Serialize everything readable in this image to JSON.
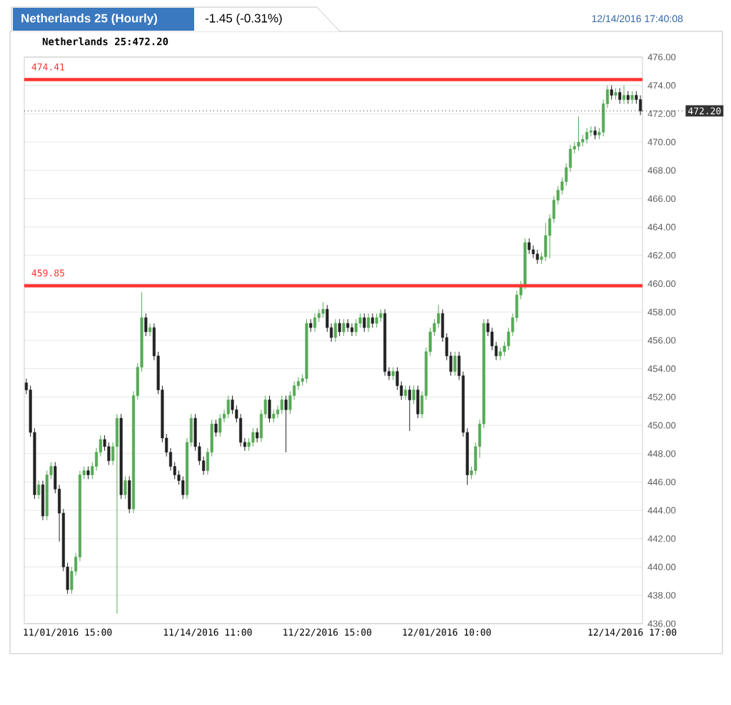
{
  "chart_data": {
    "type": "candlestick",
    "title": "Netherlands 25 (Hourly)",
    "subtitle": "-1.45 (-0.31%)",
    "annotations": [
      "Netherlands 25:472.20",
      "12/14/2016 17:40:08"
    ],
    "categories": [
      null,
      null,
      null,
      null,
      null,
      null,
      null,
      null,
      null,
      null,
      "11/01/2016 15:00",
      null,
      null,
      null,
      null,
      null,
      null,
      null,
      null,
      null,
      null,
      null,
      null,
      null,
      null,
      null,
      null,
      null,
      null,
      null,
      null,
      null,
      null,
      null,
      null,
      null,
      null,
      null,
      null,
      null,
      null,
      null,
      null,
      null,
      "11/14/2016 11:00",
      null,
      null,
      null,
      null,
      null,
      null,
      null,
      null,
      null,
      null,
      null,
      null,
      null,
      null,
      null,
      null,
      null,
      null,
      null,
      null,
      null,
      null,
      null,
      null,
      null,
      null,
      null,
      null,
      "11/22/2016 15:00",
      null,
      null,
      null,
      null,
      null,
      null,
      null,
      null,
      null,
      null,
      null,
      null,
      null,
      null,
      null,
      null,
      null,
      null,
      null,
      null,
      null,
      null,
      null,
      null,
      null,
      null,
      null,
      null,
      "12/01/2016 10:00",
      null,
      null,
      null,
      null,
      null,
      null,
      null,
      null,
      null,
      null,
      null,
      null,
      null,
      null,
      null,
      null,
      null,
      null,
      null,
      null,
      null,
      null,
      null,
      null,
      null,
      null,
      null,
      null,
      null,
      null,
      null,
      null,
      null,
      null,
      null,
      null,
      null,
      null,
      null,
      null,
      null,
      null,
      null,
      null,
      "12/14/2016 17:00",
      null,
      null
    ],
    "ohlc": [
      [
        453.0,
        453.3,
        452.2,
        452.5
      ],
      [
        452.5,
        452.8,
        449.2,
        449.5
      ],
      [
        449.5,
        449.8,
        444.8,
        445.1
      ],
      [
        445.1,
        446.1,
        444.8,
        445.8
      ],
      [
        445.8,
        446.1,
        443.3,
        443.6
      ],
      [
        443.6,
        446.8,
        443.3,
        446.5
      ],
      [
        446.5,
        447.4,
        446.2,
        447.1
      ],
      [
        447.1,
        447.4,
        445.2,
        445.5
      ],
      [
        445.5,
        445.8,
        441.8,
        443.8
      ],
      [
        443.8,
        444.1,
        439.7,
        440.0
      ],
      [
        440.0,
        440.3,
        438.1,
        438.4
      ],
      [
        438.4,
        440.0,
        438.1,
        439.7
      ],
      [
        439.7,
        441.0,
        439.4,
        440.7
      ],
      [
        440.7,
        446.8,
        440.4,
        446.5
      ],
      [
        446.5,
        447.1,
        446.2,
        446.8
      ],
      [
        446.8,
        447.1,
        446.2,
        446.5
      ],
      [
        446.5,
        447.4,
        446.2,
        447.1
      ],
      [
        447.1,
        448.4,
        446.8,
        448.1
      ],
      [
        448.1,
        449.3,
        447.8,
        449.0
      ],
      [
        449.0,
        449.3,
        448.2,
        448.5
      ],
      [
        448.5,
        448.8,
        447.2,
        447.5
      ],
      [
        447.5,
        448.8,
        447.2,
        448.5
      ],
      [
        448.5,
        450.8,
        436.7,
        450.5
      ],
      [
        450.5,
        450.8,
        444.8,
        445.1
      ],
      [
        445.1,
        446.4,
        444.8,
        446.1
      ],
      [
        446.1,
        446.4,
        443.8,
        444.1
      ],
      [
        444.1,
        452.4,
        443.8,
        452.1
      ],
      [
        452.1,
        454.4,
        451.8,
        454.1
      ],
      [
        454.1,
        459.4,
        453.8,
        457.6
      ],
      [
        457.6,
        457.9,
        456.3,
        456.6
      ],
      [
        456.6,
        457.2,
        456.3,
        456.9
      ],
      [
        456.9,
        457.2,
        454.6,
        454.9
      ],
      [
        454.9,
        455.2,
        452.2,
        452.5
      ],
      [
        452.5,
        452.8,
        448.8,
        449.1
      ],
      [
        449.1,
        449.4,
        447.8,
        448.1
      ],
      [
        448.1,
        448.4,
        446.8,
        447.1
      ],
      [
        447.1,
        447.4,
        446.2,
        446.5
      ],
      [
        446.5,
        446.8,
        445.8,
        446.1
      ],
      [
        446.1,
        446.4,
        444.8,
        445.1
      ],
      [
        445.1,
        449.1,
        444.8,
        448.8
      ],
      [
        448.8,
        450.8,
        448.5,
        450.5
      ],
      [
        450.5,
        450.8,
        448.2,
        448.5
      ],
      [
        448.5,
        448.8,
        447.2,
        447.5
      ],
      [
        447.5,
        447.8,
        446.5,
        446.8
      ],
      [
        446.8,
        448.4,
        446.5,
        448.1
      ],
      [
        448.1,
        450.4,
        447.8,
        450.1
      ],
      [
        450.1,
        450.4,
        449.2,
        449.5
      ],
      [
        449.5,
        450.8,
        449.2,
        450.5
      ],
      [
        450.5,
        451.1,
        450.2,
        450.8
      ],
      [
        450.8,
        452.1,
        450.5,
        451.8
      ],
      [
        451.8,
        452.1,
        450.8,
        451.1
      ],
      [
        451.1,
        451.4,
        450.2,
        450.5
      ],
      [
        450.5,
        450.8,
        448.5,
        448.8
      ],
      [
        448.8,
        449.1,
        448.2,
        448.5
      ],
      [
        448.5,
        449.1,
        448.2,
        448.8
      ],
      [
        448.8,
        449.8,
        448.5,
        449.5
      ],
      [
        449.5,
        449.8,
        448.8,
        449.1
      ],
      [
        449.1,
        451.1,
        448.8,
        450.8
      ],
      [
        450.8,
        452.1,
        450.5,
        451.8
      ],
      [
        451.8,
        452.1,
        450.2,
        450.5
      ],
      [
        450.5,
        451.1,
        450.2,
        450.8
      ],
      [
        450.8,
        451.4,
        450.5,
        451.1
      ],
      [
        451.1,
        452.1,
        450.8,
        451.8
      ],
      [
        451.8,
        452.1,
        448.1,
        451.1
      ],
      [
        451.1,
        452.4,
        450.8,
        452.1
      ],
      [
        452.1,
        453.1,
        451.8,
        452.8
      ],
      [
        452.8,
        453.4,
        452.5,
        453.1
      ],
      [
        453.1,
        453.6,
        452.8,
        453.3
      ],
      [
        453.3,
        457.5,
        453.0,
        457.2
      ],
      [
        457.2,
        457.5,
        456.6,
        456.9
      ],
      [
        456.9,
        457.9,
        456.6,
        457.6
      ],
      [
        457.6,
        458.2,
        457.3,
        457.9
      ],
      [
        457.9,
        458.7,
        457.6,
        458.2
      ],
      [
        458.2,
        458.5,
        456.6,
        456.9
      ],
      [
        456.9,
        457.2,
        455.9,
        456.2
      ],
      [
        456.2,
        457.5,
        455.9,
        457.2
      ],
      [
        457.2,
        457.5,
        456.3,
        456.6
      ],
      [
        456.6,
        457.5,
        456.3,
        457.2
      ],
      [
        457.2,
        457.5,
        456.6,
        456.9
      ],
      [
        456.9,
        457.2,
        456.3,
        456.6
      ],
      [
        456.6,
        457.5,
        456.3,
        457.2
      ],
      [
        457.2,
        457.9,
        456.9,
        457.6
      ],
      [
        457.6,
        457.9,
        456.6,
        456.9
      ],
      [
        456.9,
        457.9,
        456.6,
        457.6
      ],
      [
        457.6,
        457.9,
        456.9,
        457.2
      ],
      [
        457.2,
        457.9,
        456.9,
        457.6
      ],
      [
        457.6,
        458.2,
        457.3,
        457.9
      ],
      [
        457.9,
        458.2,
        453.5,
        453.8
      ],
      [
        453.8,
        454.1,
        453.2,
        453.5
      ],
      [
        453.5,
        454.1,
        453.2,
        453.8
      ],
      [
        453.8,
        454.1,
        452.5,
        452.8
      ],
      [
        452.8,
        453.1,
        451.8,
        452.1
      ],
      [
        452.1,
        452.8,
        451.8,
        452.5
      ],
      [
        452.5,
        452.8,
        449.6,
        451.8
      ],
      [
        451.8,
        452.8,
        451.5,
        452.5
      ],
      [
        452.5,
        452.8,
        450.5,
        450.8
      ],
      [
        450.8,
        452.4,
        450.5,
        452.1
      ],
      [
        452.1,
        455.5,
        451.8,
        455.2
      ],
      [
        455.2,
        456.9,
        454.9,
        456.6
      ],
      [
        456.6,
        457.5,
        456.3,
        457.2
      ],
      [
        457.2,
        458.5,
        456.9,
        457.9
      ],
      [
        457.9,
        458.2,
        455.9,
        456.2
      ],
      [
        456.2,
        456.5,
        454.6,
        454.9
      ],
      [
        454.9,
        455.2,
        453.5,
        453.8
      ],
      [
        453.8,
        455.2,
        453.5,
        454.9
      ],
      [
        454.9,
        455.2,
        453.2,
        453.5
      ],
      [
        453.5,
        453.8,
        449.2,
        449.5
      ],
      [
        449.5,
        449.8,
        445.8,
        446.5
      ],
      [
        446.5,
        447.1,
        446.2,
        446.8
      ],
      [
        446.8,
        448.8,
        446.5,
        448.5
      ],
      [
        448.5,
        450.4,
        447.7,
        450.1
      ],
      [
        450.1,
        457.5,
        449.8,
        457.2
      ],
      [
        457.2,
        457.5,
        456.3,
        456.6
      ],
      [
        456.6,
        456.9,
        455.3,
        455.6
      ],
      [
        455.6,
        455.9,
        454.6,
        454.9
      ],
      [
        454.9,
        455.5,
        454.6,
        455.2
      ],
      [
        455.2,
        455.9,
        454.9,
        455.6
      ],
      [
        455.6,
        456.9,
        455.3,
        456.6
      ],
      [
        456.6,
        457.9,
        456.3,
        457.6
      ],
      [
        457.6,
        459.5,
        457.3,
        459.2
      ],
      [
        459.2,
        460.2,
        458.9,
        459.9
      ],
      [
        459.9,
        463.2,
        459.6,
        462.9
      ],
      [
        462.9,
        463.2,
        462.1,
        462.4
      ],
      [
        462.4,
        462.7,
        461.8,
        462.1
      ],
      [
        462.1,
        462.4,
        461.4,
        461.7
      ],
      [
        461.7,
        462.2,
        461.4,
        461.9
      ],
      [
        461.9,
        464.3,
        461.6,
        463.4
      ],
      [
        463.4,
        464.9,
        461.8,
        464.6
      ],
      [
        464.6,
        466.2,
        464.3,
        465.9
      ],
      [
        465.9,
        466.9,
        465.6,
        466.6
      ],
      [
        466.6,
        467.5,
        466.3,
        467.2
      ],
      [
        467.2,
        468.5,
        466.9,
        468.2
      ],
      [
        468.2,
        469.8,
        467.9,
        469.5
      ],
      [
        469.5,
        470.0,
        469.2,
        469.7
      ],
      [
        469.7,
        471.8,
        469.4,
        470.0
      ],
      [
        470.0,
        470.5,
        469.7,
        470.2
      ],
      [
        470.2,
        471.0,
        469.9,
        470.7
      ],
      [
        470.7,
        471.1,
        470.4,
        470.8
      ],
      [
        470.8,
        471.1,
        470.2,
        470.5
      ],
      [
        470.5,
        471.0,
        470.2,
        470.7
      ],
      [
        470.7,
        473.0,
        470.4,
        472.7
      ],
      [
        472.7,
        474.0,
        472.4,
        473.7
      ],
      [
        473.7,
        474.0,
        473.0,
        473.3
      ],
      [
        473.3,
        473.8,
        473.0,
        473.5
      ],
      [
        473.5,
        473.8,
        472.7,
        473.0
      ],
      [
        473.0,
        474.0,
        472.7,
        473.3
      ],
      [
        473.3,
        473.6,
        472.7,
        473.0
      ],
      [
        473.0,
        473.6,
        472.7,
        473.3
      ],
      [
        473.3,
        473.6,
        472.7,
        473.0
      ],
      [
        473.0,
        473.3,
        471.9,
        472.2
      ]
    ],
    "colors": [
      "#222222",
      "#222222",
      "#222222",
      "#55aa55",
      "#222222",
      "#55aa55",
      "#55aa55",
      "#222222",
      "#222222",
      "#222222",
      "#222222",
      "#55aa55",
      "#55aa55",
      "#55aa55",
      "#55aa55",
      "#222222",
      "#55aa55",
      "#55aa55",
      "#55aa55",
      "#222222",
      "#222222",
      "#55aa55",
      "#55aa55",
      "#222222",
      "#55aa55",
      "#222222",
      "#55aa55",
      "#55aa55",
      "#55aa55",
      "#222222",
      "#55aa55",
      "#222222",
      "#222222",
      "#222222",
      "#222222",
      "#222222",
      "#222222",
      "#222222",
      "#222222",
      "#55aa55",
      "#55aa55",
      "#222222",
      "#222222",
      "#222222",
      "#55aa55",
      "#55aa55",
      "#222222",
      "#55aa55",
      "#55aa55",
      "#55aa55",
      "#222222",
      "#222222",
      "#222222",
      "#222222",
      "#55aa55",
      "#55aa55",
      "#222222",
      "#55aa55",
      "#55aa55",
      "#222222",
      "#55aa55",
      "#55aa55",
      "#55aa55",
      "#222222",
      "#55aa55",
      "#55aa55",
      "#55aa55",
      "#55aa55",
      "#55aa55",
      "#222222",
      "#55aa55",
      "#55aa55",
      "#55aa55",
      "#222222",
      "#222222",
      "#55aa55",
      "#222222",
      "#55aa55",
      "#222222",
      "#222222",
      "#55aa55",
      "#55aa55",
      "#222222",
      "#55aa55",
      "#222222",
      "#55aa55",
      "#55aa55",
      "#222222",
      "#222222",
      "#55aa55",
      "#222222",
      "#222222",
      "#55aa55",
      "#222222",
      "#55aa55",
      "#222222",
      "#55aa55",
      "#55aa55",
      "#55aa55",
      "#55aa55",
      "#55aa55",
      "#222222",
      "#222222",
      "#222222",
      "#55aa55",
      "#222222",
      "#222222",
      "#222222",
      "#55aa55",
      "#55aa55",
      "#55aa55",
      "#55aa55",
      "#222222",
      "#222222",
      "#222222",
      "#55aa55",
      "#55aa55",
      "#55aa55",
      "#55aa55",
      "#55aa55",
      "#55aa55",
      "#55aa55",
      "#222222",
      "#222222",
      "#222222",
      "#55aa55",
      "#55aa55",
      "#55aa55",
      "#55aa55",
      "#55aa55",
      "#55aa55",
      "#55aa55",
      "#55aa55",
      "#55aa55",
      "#55aa55",
      "#55aa55",
      "#55aa55",
      "#55aa55",
      "#222222",
      "#55aa55",
      "#55aa55",
      "#55aa55",
      "#222222",
      "#55aa55",
      "#222222",
      "#55aa55",
      "#222222",
      "#55aa55",
      "#222222",
      "#222222"
    ],
    "ylim": [
      436,
      476
    ],
    "yticks": [
      {
        "value": 436,
        "label": "436.00"
      },
      {
        "value": 438,
        "label": "438.00"
      },
      {
        "value": 440,
        "label": "440.00"
      },
      {
        "value": 442,
        "label": "442.00"
      },
      {
        "value": 444,
        "label": "444.00"
      },
      {
        "value": 446,
        "label": "446.00"
      },
      {
        "value": 448,
        "label": "448.00"
      },
      {
        "value": 450,
        "label": "450.00"
      },
      {
        "value": 452,
        "label": "452.00"
      },
      {
        "value": 454,
        "label": "454.00"
      },
      {
        "value": 456,
        "label": "456.00"
      },
      {
        "value": 458,
        "label": "458.00"
      },
      {
        "value": 460,
        "label": "460.00"
      },
      {
        "value": 462,
        "label": "462.00"
      },
      {
        "value": 464,
        "label": "464.00"
      },
      {
        "value": 466,
        "label": "466.00"
      },
      {
        "value": 468,
        "label": "468.00"
      },
      {
        "value": 470,
        "label": "470.00"
      },
      {
        "value": 472,
        "label": "472.00"
      },
      {
        "value": 474,
        "label": "474.00"
      },
      {
        "value": 476,
        "label": "476.00"
      }
    ],
    "grid": "y",
    "ref_lines": [
      {
        "axis": "y",
        "value": 474.41,
        "label": "474.41",
        "color": "#ff3333",
        "line_style": "solid"
      },
      {
        "axis": "y",
        "value": 459.85,
        "label": "459.85",
        "color": "#ff3333",
        "line_style": "solid"
      },
      {
        "axis": "y",
        "value": 472.2,
        "label": "472.20",
        "color": "#333333",
        "line_style": "dotted"
      }
    ]
  }
}
